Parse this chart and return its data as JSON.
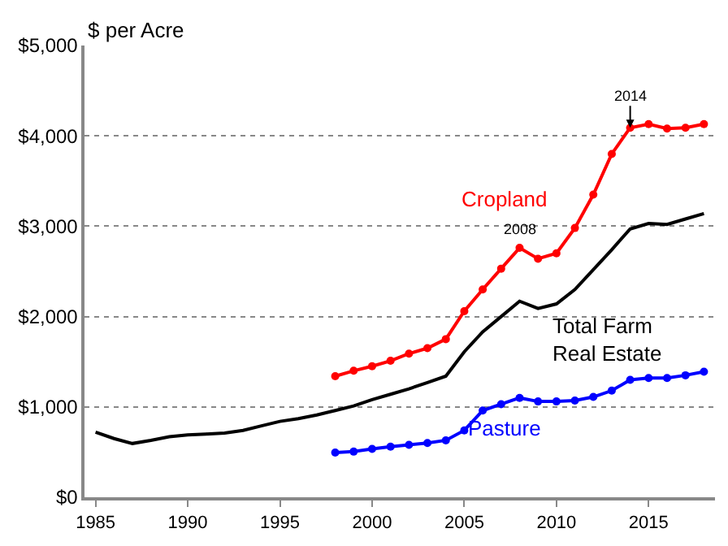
{
  "chart_data": {
    "type": "line",
    "ylabel": "$ per Acre",
    "x": [
      1985,
      1986,
      1987,
      1988,
      1989,
      1990,
      1991,
      1992,
      1993,
      1994,
      1995,
      1996,
      1997,
      1998,
      1999,
      2000,
      2001,
      2002,
      2003,
      2004,
      2005,
      2006,
      2007,
      2008,
      2009,
      2010,
      2011,
      2012,
      2013,
      2014,
      2015,
      2016,
      2017,
      2018
    ],
    "series": [
      {
        "name": "Cropland",
        "color": "#ff0000",
        "marker": "circle",
        "x": [
          1998,
          1999,
          2000,
          2001,
          2002,
          2003,
          2004,
          2005,
          2006,
          2007,
          2008,
          2009,
          2010,
          2011,
          2012,
          2013,
          2014,
          2015,
          2016,
          2017,
          2018
        ],
        "values": [
          1340,
          1400,
          1450,
          1510,
          1590,
          1650,
          1750,
          2060,
          2300,
          2530,
          2760,
          2640,
          2700,
          2980,
          3350,
          3800,
          4090,
          4130,
          4080,
          4090,
          4130
        ]
      },
      {
        "name": "Total Farm Real Estate",
        "color": "#000000",
        "marker": "none",
        "values": [
          720,
          650,
          595,
          630,
          670,
          690,
          700,
          710,
          740,
          790,
          840,
          870,
          910,
          960,
          1010,
          1080,
          1140,
          1200,
          1270,
          1340,
          1610,
          1830,
          2000,
          2170,
          2090,
          2140,
          2300,
          2520,
          2740,
          2970,
          3030,
          3020,
          3080,
          3140
        ]
      },
      {
        "name": "Pasture",
        "color": "#0000ff",
        "marker": "circle",
        "x": [
          1998,
          1999,
          2000,
          2001,
          2002,
          2003,
          2004,
          2005,
          2006,
          2007,
          2008,
          2009,
          2010,
          2011,
          2012,
          2013,
          2014,
          2015,
          2016,
          2017,
          2018
        ],
        "values": [
          495,
          505,
          535,
          560,
          580,
          600,
          630,
          740,
          960,
          1030,
          1100,
          1060,
          1060,
          1070,
          1110,
          1180,
          1300,
          1320,
          1320,
          1350,
          1390
        ]
      }
    ],
    "annotations": [
      {
        "text": "2014",
        "x": 2014,
        "y": 4090
      },
      {
        "text": "2008",
        "x": 2008,
        "y": 2760
      }
    ],
    "xlim": [
      1984.4,
      2018.6
    ],
    "xticks": [
      1985,
      1990,
      1995,
      2000,
      2005,
      2010,
      2015
    ],
    "ylim": [
      0,
      5000
    ],
    "yticks": [
      {
        "value": 0,
        "label": "$0"
      },
      {
        "value": 1000,
        "label": "$1,000"
      },
      {
        "value": 2000,
        "label": "$2,000"
      },
      {
        "value": 3000,
        "label": "$3,000"
      },
      {
        "value": 4000,
        "label": "$4,000"
      },
      {
        "value": 5000,
        "label": "$5,000"
      }
    ],
    "grid": "y",
    "line_style": "solid",
    "legend": false
  }
}
